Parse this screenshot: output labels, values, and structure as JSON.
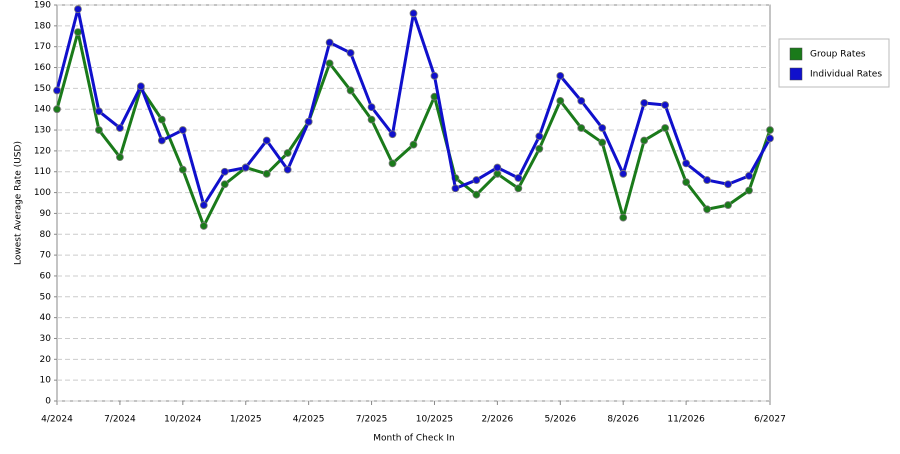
{
  "chart_data": {
    "type": "line",
    "x_label": "Month of Check In",
    "y_label": "Lowest Average Rate (USD)",
    "categories": [
      "4/2024",
      null,
      null,
      "7/2024",
      null,
      null,
      "10/2024",
      null,
      null,
      "1/2025",
      null,
      null,
      "4/2025",
      null,
      null,
      "7/2025",
      null,
      null,
      "10/2025",
      null,
      null,
      "2/2026",
      null,
      null,
      "5/2026",
      null,
      null,
      "8/2026",
      null,
      null,
      "11/2026",
      null,
      null,
      null,
      "6/2027"
    ],
    "series": [
      {
        "name": "Group Rates",
        "color": "#1a7a1a",
        "values": [
          140,
          177,
          130,
          117,
          150,
          135,
          111,
          84,
          104,
          112,
          109,
          119,
          134,
          162,
          149,
          135,
          114,
          123,
          146,
          107,
          99,
          109,
          102,
          121,
          144,
          131,
          124,
          88,
          125,
          131,
          105,
          92,
          94,
          101,
          130
        ]
      },
      {
        "name": "Individual Rates",
        "color": "#1010cc",
        "values": [
          149,
          188,
          139,
          131,
          151,
          125,
          130,
          94,
          110,
          112,
          125,
          111,
          134,
          172,
          167,
          141,
          128,
          186,
          156,
          102,
          106,
          112,
          107,
          127,
          156,
          144,
          131,
          109,
          143,
          142,
          114,
          106,
          104,
          108,
          126
        ]
      }
    ],
    "ylim": [
      0,
      190
    ],
    "yticks": [
      0,
      10,
      20,
      30,
      40,
      50,
      60,
      70,
      80,
      90,
      100,
      110,
      120,
      130,
      140,
      150,
      160,
      170,
      180,
      190
    ],
    "grid": true,
    "legend": "right"
  }
}
